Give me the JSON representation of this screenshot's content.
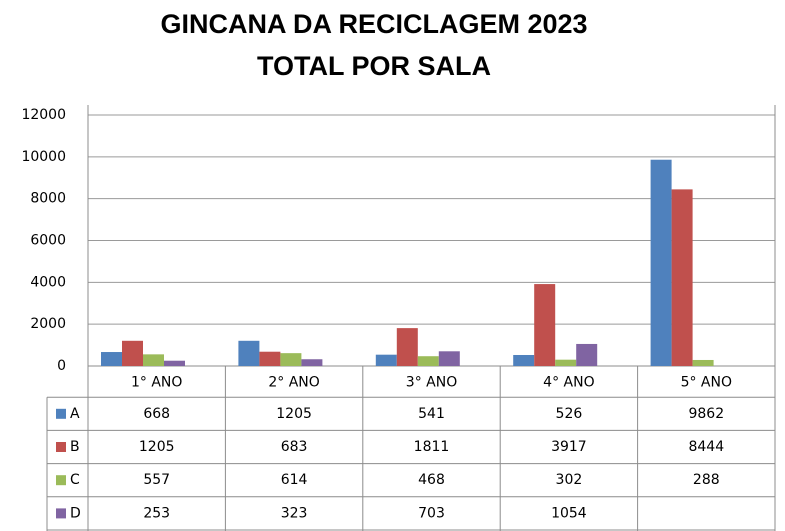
{
  "chart_data": {
    "type": "bar",
    "title": "GINCANA DA RECICLAGEM 2023",
    "subtitle": "TOTAL POR SALA",
    "categories": [
      "1° ANO",
      "2° ANO",
      "3° ANO",
      "4° ANO",
      "5° ANO"
    ],
    "series": [
      {
        "name": "A",
        "color": "#4f81bd",
        "values": [
          668,
          1205,
          541,
          526,
          9862
        ]
      },
      {
        "name": "B",
        "color": "#c0504d",
        "values": [
          1205,
          683,
          1811,
          3917,
          8444
        ]
      },
      {
        "name": "C",
        "color": "#9bbb59",
        "values": [
          557,
          614,
          468,
          302,
          288
        ]
      },
      {
        "name": "D",
        "color": "#8064a2",
        "values": [
          253,
          323,
          703,
          1054,
          null
        ]
      }
    ],
    "ylim": [
      0,
      12000
    ],
    "yticks": [
      0,
      2000,
      4000,
      6000,
      8000,
      10000,
      12000
    ],
    "grid": true
  }
}
